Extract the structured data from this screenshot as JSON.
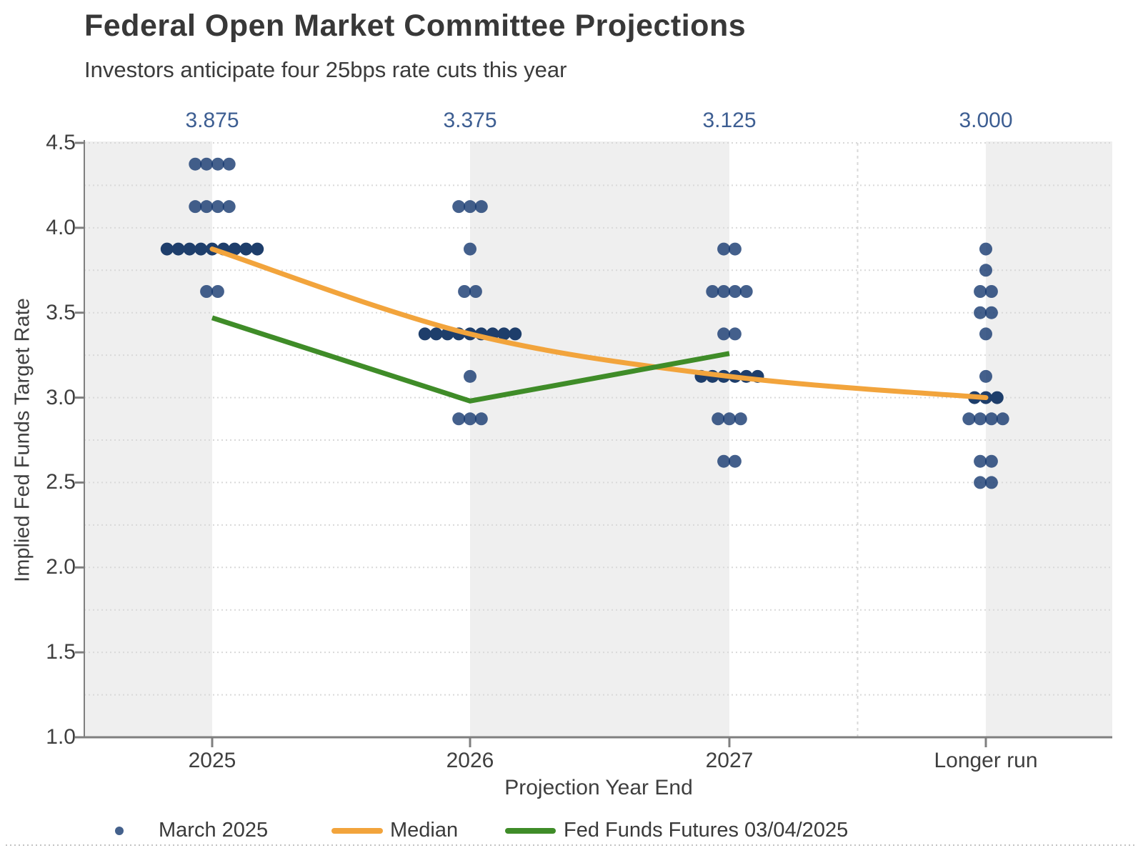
{
  "header": {
    "title": "Federal Open Market Committee Projections",
    "subtitle": "Investors anticipate four 25bps rate cuts this year"
  },
  "chart_data": {
    "type": "scatter",
    "title": "Federal Open Market Committee Projections",
    "subtitle": "Investors anticipate four 25bps rate cuts this year",
    "xlabel": "Projection Year End",
    "ylabel": "Implied Fed Funds Target Rate",
    "categories": [
      "2025",
      "2026",
      "2027",
      "Longer run"
    ],
    "ylim": [
      1.0,
      4.5
    ],
    "yticks": [
      "4.5",
      "4.0",
      "3.5",
      "3.0",
      "2.5",
      "2.0",
      "1.5",
      "1.0"
    ],
    "grid_interval": 0.25,
    "median_labels": [
      "3.875",
      "3.375",
      "3.125",
      "3.000"
    ],
    "median_label_color": "#3d5e92",
    "band_color": "#efefef",
    "dot_series": {
      "name": "March 2025",
      "color": "#15386f",
      "median_color": "#1e3e6b",
      "distributions": [
        {
          "category": "2025",
          "rows": [
            {
              "rate": 4.375,
              "count": 4
            },
            {
              "rate": 4.125,
              "count": 4
            },
            {
              "rate": 3.875,
              "count": 9,
              "is_median": true
            },
            {
              "rate": 3.625,
              "count": 2
            }
          ]
        },
        {
          "category": "2026",
          "rows": [
            {
              "rate": 4.125,
              "count": 3
            },
            {
              "rate": 3.875,
              "count": 1
            },
            {
              "rate": 3.625,
              "count": 2
            },
            {
              "rate": 3.375,
              "count": 9,
              "is_median": true
            },
            {
              "rate": 3.125,
              "count": 1
            },
            {
              "rate": 2.875,
              "count": 3
            }
          ]
        },
        {
          "category": "2027",
          "rows": [
            {
              "rate": 3.875,
              "count": 2
            },
            {
              "rate": 3.625,
              "count": 4
            },
            {
              "rate": 3.375,
              "count": 2
            },
            {
              "rate": 3.125,
              "count": 6,
              "is_median": true
            },
            {
              "rate": 2.875,
              "count": 3
            },
            {
              "rate": 2.625,
              "count": 2
            }
          ]
        },
        {
          "category": "Longer run",
          "rows": [
            {
              "rate": 3.875,
              "count": 1
            },
            {
              "rate": 3.75,
              "count": 1
            },
            {
              "rate": 3.625,
              "count": 2
            },
            {
              "rate": 3.5,
              "count": 2
            },
            {
              "rate": 3.375,
              "count": 1
            },
            {
              "rate": 3.125,
              "count": 1
            },
            {
              "rate": 3.0,
              "count": 3,
              "is_median": true
            },
            {
              "rate": 2.875,
              "count": 4
            },
            {
              "rate": 2.625,
              "count": 2
            },
            {
              "rate": 2.5,
              "count": 2
            }
          ]
        }
      ]
    },
    "lines": [
      {
        "name": "Median",
        "color": "#f2a43c",
        "x": [
          "2025",
          "2026",
          "2027",
          "Longer run"
        ],
        "values": [
          3.875,
          3.375,
          3.125,
          3.0
        ],
        "smooth": true
      },
      {
        "name": "Fed Funds Futures 03/04/2025",
        "color": "#3f8c28",
        "x": [
          "2025",
          "2026",
          "2027"
        ],
        "values": [
          3.47,
          2.98,
          3.26
        ],
        "smooth": false
      }
    ],
    "legend": {
      "position": "bottom",
      "items": [
        "March 2025",
        "Median",
        "Fed Funds Futures 03/04/2025"
      ]
    }
  }
}
